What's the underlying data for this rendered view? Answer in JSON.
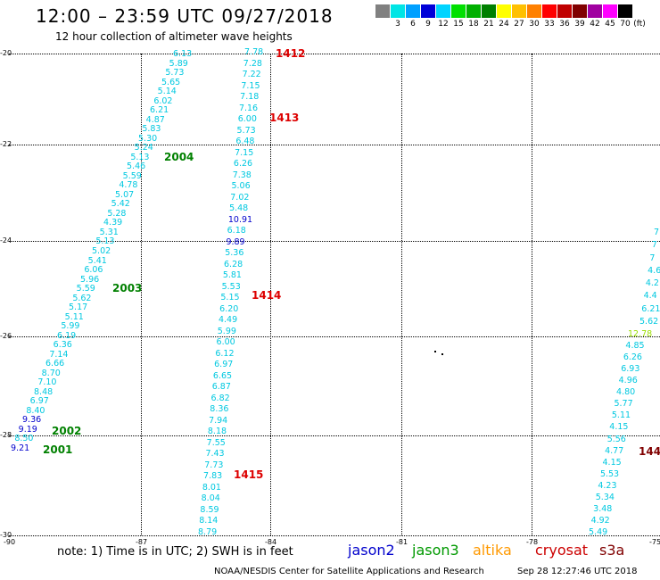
{
  "header": {
    "title": "12:00 – 23:59 UTC 09/27/2018",
    "subtitle": "12 hour collection of altimeter wave heights"
  },
  "colorbar": {
    "unit": "(ft)",
    "bins": [
      {
        "color": "#808080",
        "label": ""
      },
      {
        "color": "#00e5e5",
        "label": "3"
      },
      {
        "color": "#00a0ff",
        "label": "6"
      },
      {
        "color": "#0000d8",
        "label": "9"
      },
      {
        "color": "#00d4ff",
        "label": "12"
      },
      {
        "color": "#00e000",
        "label": "15"
      },
      {
        "color": "#00b000",
        "label": "18"
      },
      {
        "color": "#008000",
        "label": "21"
      },
      {
        "color": "#ffff00",
        "label": "24"
      },
      {
        "color": "#ffc000",
        "label": "27"
      },
      {
        "color": "#ff8000",
        "label": "30"
      },
      {
        "color": "#ff0000",
        "label": "33"
      },
      {
        "color": "#c00000",
        "label": "36"
      },
      {
        "color": "#800000",
        "label": "39"
      },
      {
        "color": "#a000a0",
        "label": "42"
      },
      {
        "color": "#ff00ff",
        "label": "45"
      },
      {
        "color": "#000000",
        "label": "70"
      }
    ]
  },
  "axes": {
    "y_ticks": [
      "-20",
      "-22",
      "-24",
      "-26",
      "-28",
      "-30"
    ],
    "x_ticks": [
      "-90",
      "-87",
      "-84",
      "-81",
      "-78",
      "-75"
    ]
  },
  "tracks": {
    "a": [
      "6.13",
      "5.89",
      "5.73",
      "5.65",
      "5.14",
      "6.02",
      "6.21",
      "4.87",
      "5.83",
      "5.30",
      "5.24",
      "5.13",
      "5.46",
      "5.59",
      "4.78",
      "5.07",
      "5.42",
      "5.28",
      "4.39",
      "5.31",
      "5.13",
      "5.02",
      "5.41",
      "6.06",
      "5.96",
      "5.59",
      "5.62",
      "5.17",
      "5.11",
      "5.99",
      "6.19",
      "6.36",
      "7.14",
      "6.66",
      "8.70",
      "7.10",
      "8.48",
      "6.97",
      "8.40",
      "9.36",
      "9.19",
      "8.50",
      "9.21"
    ],
    "b": [
      "7.78",
      "7.28",
      "7.22",
      "7.15",
      "7.18",
      "7.16",
      "6.00",
      "5.73",
      "6.48",
      "7.15",
      "6.26",
      "7.38",
      "5.06",
      "7.02",
      "5.48",
      "10.91",
      "6.18",
      "9.89",
      "5.36",
      "6.28",
      "5.81",
      "5.53",
      "5.15",
      "6.20",
      "4.49",
      "5.99",
      "6.00",
      "6.12",
      "6.97",
      "6.65",
      "6.87",
      "6.82",
      "8.36",
      "7.94",
      "8.18",
      "7.55",
      "7.43",
      "7.73",
      "7.83",
      "8.01",
      "8.04",
      "8.59",
      "8.14",
      "8.79"
    ],
    "c": [
      "12.78",
      "4.85",
      "6.26",
      "6.93",
      "4.96",
      "4.80",
      "5.77",
      "5.11",
      "4.15",
      "5.56",
      "4.77",
      "4.15",
      "5.53",
      "4.23",
      "5.34",
      "3.48",
      "4.92",
      "5.49"
    ],
    "c_edge": [
      "7",
      "7",
      "7",
      "4.6",
      "4.2",
      "4.4",
      "6.21",
      "5.62"
    ]
  },
  "passes": [
    {
      "label": "1412",
      "color": "#dd0000"
    },
    {
      "label": "1413",
      "color": "#dd0000"
    },
    {
      "label": "1414",
      "color": "#dd0000"
    },
    {
      "label": "1415",
      "color": "#dd0000"
    },
    {
      "label": "144",
      "color": "#800000"
    },
    {
      "label": "2004",
      "color": "#008000"
    },
    {
      "label": "2003",
      "color": "#008000"
    },
    {
      "label": "2002",
      "color": "#008000"
    },
    {
      "label": "2001",
      "color": "#008000"
    }
  ],
  "footer": {
    "note": "note: 1) Time is in UTC; 2) SWH is in feet",
    "satellites": [
      {
        "name": "jason2",
        "color": "#0000cc"
      },
      {
        "name": "jason3",
        "color": "#009900"
      },
      {
        "name": "altika",
        "color": "#ff9900"
      },
      {
        "name": "cryosat",
        "color": "#cc0000"
      },
      {
        "name": "s3a",
        "color": "#800000"
      }
    ],
    "credit": "NOAA/NESDIS Center for Satellite Applications and Research",
    "timestamp": "Sep 28 12:27:46 UTC 2018"
  }
}
